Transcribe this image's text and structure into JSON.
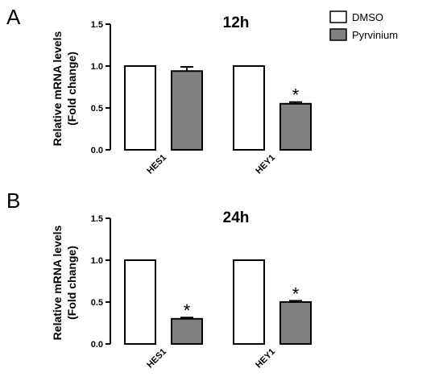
{
  "legend": {
    "items": [
      {
        "label": "DMSO",
        "color": "#ffffff"
      },
      {
        "label": "Pyrvinium",
        "color": "#808080"
      }
    ]
  },
  "chart_data": [
    {
      "panel": "A",
      "type": "bar",
      "title": "12h",
      "ylabel": "Relative mRNA levels\n(Fold change)",
      "xlabel": "",
      "ylim": [
        0,
        1.5
      ],
      "yticks": [
        0.0,
        0.5,
        1.0,
        1.5
      ],
      "ytick_labels": [
        "0.0",
        "0.5",
        "1.0",
        "1.5"
      ],
      "categories": [
        "HES1",
        "HEY1"
      ],
      "series": [
        {
          "name": "DMSO",
          "values": [
            1.0,
            1.0
          ],
          "errors": [
            0,
            0
          ],
          "color": "#ffffff"
        },
        {
          "name": "Pyrvinium",
          "values": [
            0.94,
            0.55
          ],
          "errors": [
            0.05,
            0.02
          ],
          "color": "#808080",
          "annotations": [
            "",
            "*"
          ]
        }
      ]
    },
    {
      "panel": "B",
      "type": "bar",
      "title": "24h",
      "ylabel": "Relative mRNA levels\n(Fold change)",
      "xlabel": "",
      "ylim": [
        0,
        1.5
      ],
      "yticks": [
        0.0,
        0.5,
        1.0,
        1.5
      ],
      "ytick_labels": [
        "0.0",
        "0.5",
        "1.0",
        "1.5"
      ],
      "categories": [
        "HES1",
        "HEY1"
      ],
      "series": [
        {
          "name": "DMSO",
          "values": [
            1.0,
            1.0
          ],
          "errors": [
            0,
            0
          ],
          "color": "#ffffff"
        },
        {
          "name": "Pyrvinium",
          "values": [
            0.3,
            0.5
          ],
          "errors": [
            0.015,
            0.015
          ],
          "color": "#808080",
          "annotations": [
            "*",
            "*"
          ]
        }
      ]
    }
  ]
}
